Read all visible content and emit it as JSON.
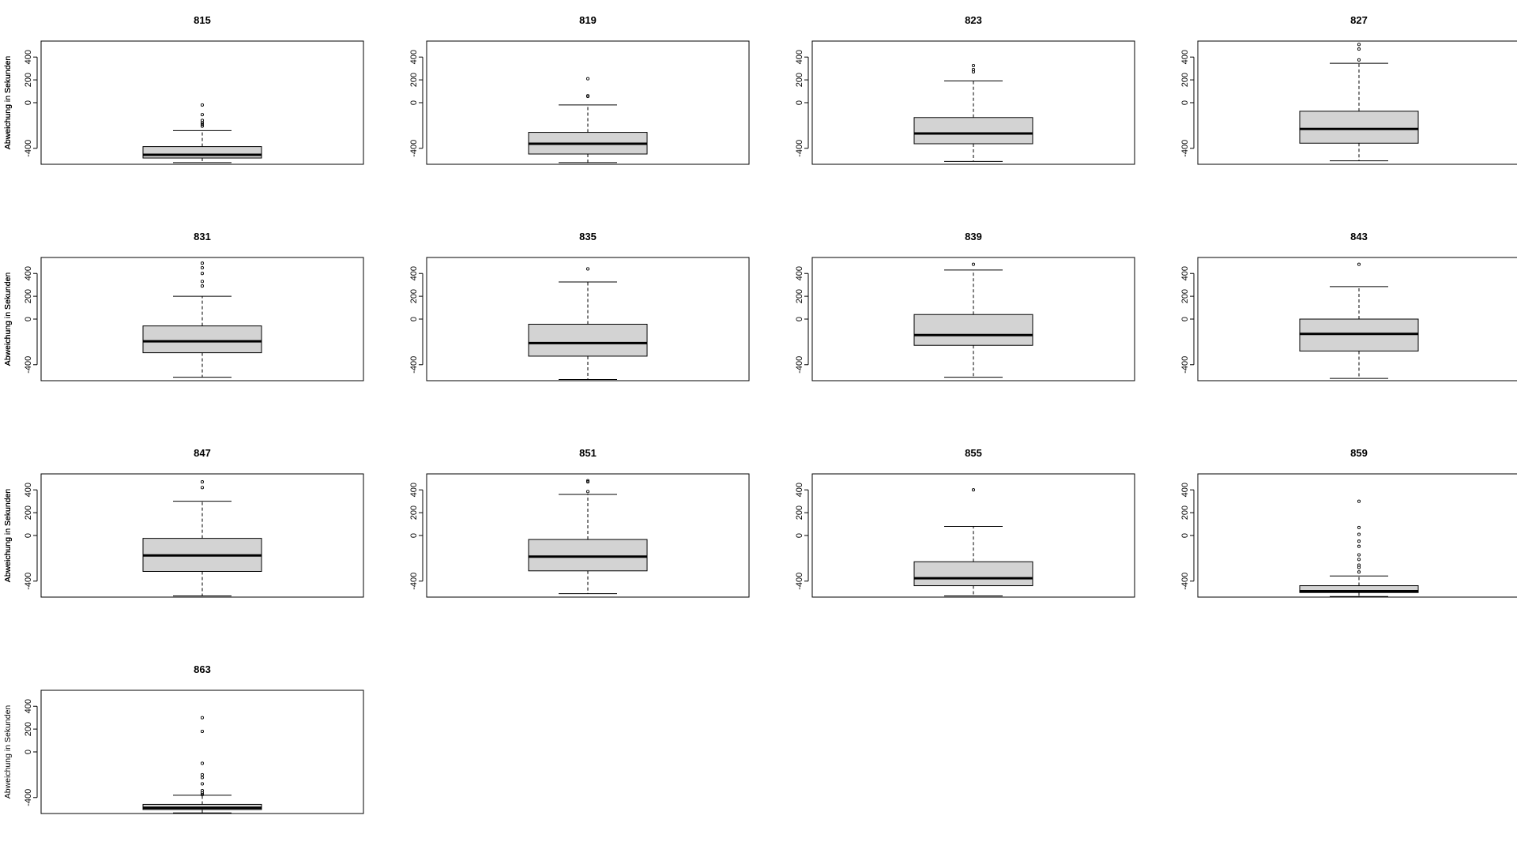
{
  "chart_data": [
    {
      "type": "box",
      "title": "815",
      "ylabel": "Abweichung in Sekunden",
      "yticks": [
        "-400",
        "0",
        "200",
        "400"
      ],
      "ylim": [
        -540,
        540
      ],
      "stats": {
        "min": -525,
        "q1": -485,
        "median": -457,
        "q3": -385,
        "whisker_low": -525,
        "whisker_high": -245
      },
      "outliers": [
        -20,
        -105,
        -155,
        -175,
        -190,
        -205
      ]
    },
    {
      "type": "box",
      "title": "819",
      "ylabel": "Abweichung in Sekunden",
      "yticks": [
        "-400",
        "0",
        "200",
        "400"
      ],
      "ylim": [
        -540,
        540
      ],
      "stats": {
        "q1": -450,
        "median": -360,
        "q3": -260,
        "whisker_low": -525,
        "whisker_high": -20
      },
      "outliers": [
        60,
        55,
        210
      ]
    },
    {
      "type": "box",
      "title": "823",
      "ylabel": "Abweichung in Sekunden",
      "yticks": [
        "-400",
        "0",
        "200",
        "400"
      ],
      "ylim": [
        -540,
        540
      ],
      "stats": {
        "q1": -360,
        "median": -270,
        "q3": -130,
        "whisker_low": -515,
        "whisker_high": 190
      },
      "outliers": [
        270,
        290,
        325
      ]
    },
    {
      "type": "box",
      "title": "827",
      "ylabel": "Abweichung in Sekunden",
      "yticks": [
        "-400",
        "0",
        "200",
        "400"
      ],
      "ylim": [
        -540,
        540
      ],
      "stats": {
        "q1": -355,
        "median": -230,
        "q3": -75,
        "whisker_low": -510,
        "whisker_high": 345
      },
      "outliers": [
        375,
        470,
        510
      ]
    },
    {
      "type": "box",
      "title": "831",
      "ylabel": "Abweichung in Sekunden",
      "yticks": [
        "-400",
        "0",
        "200",
        "400"
      ],
      "ylim": [
        -540,
        540
      ],
      "stats": {
        "q1": -295,
        "median": -195,
        "q3": -60,
        "whisker_low": -510,
        "whisker_high": 200
      },
      "outliers": [
        290,
        330,
        400,
        450,
        490
      ]
    },
    {
      "type": "box",
      "title": "835",
      "ylabel": "Abweichung in Sekunden",
      "yticks": [
        "-400",
        "0",
        "200",
        "400"
      ],
      "ylim": [
        -540,
        540
      ],
      "stats": {
        "q1": -325,
        "median": -210,
        "q3": -45,
        "whisker_low": -530,
        "whisker_high": 325
      },
      "outliers": [
        440
      ]
    },
    {
      "type": "box",
      "title": "839",
      "ylabel": "Abweichung in Sekunden",
      "yticks": [
        "-400",
        "0",
        "200",
        "400"
      ],
      "ylim": [
        -540,
        540
      ],
      "stats": {
        "q1": -230,
        "median": -140,
        "q3": 40,
        "whisker_low": -510,
        "whisker_high": 430
      },
      "outliers": [
        480
      ]
    },
    {
      "type": "box",
      "title": "843",
      "ylabel": "Abweichung in Sekunden",
      "yticks": [
        "-400",
        "0",
        "200",
        "400"
      ],
      "ylim": [
        -540,
        540
      ],
      "stats": {
        "q1": -280,
        "median": -130,
        "q3": 0,
        "whisker_low": -520,
        "whisker_high": 285
      },
      "outliers": [
        480
      ]
    },
    {
      "type": "box",
      "title": "847",
      "ylabel": "Abweichung in Sekunden",
      "yticks": [
        "-400",
        "0",
        "200",
        "400"
      ],
      "ylim": [
        -540,
        540
      ],
      "stats": {
        "q1": -315,
        "median": -175,
        "q3": -25,
        "whisker_low": -530,
        "whisker_high": 300
      },
      "outliers": [
        420,
        470
      ]
    },
    {
      "type": "box",
      "title": "851",
      "ylabel": "Abweichung in Sekunden",
      "yticks": [
        "-400",
        "0",
        "200",
        "400"
      ],
      "ylim": [
        -540,
        540
      ],
      "stats": {
        "q1": -310,
        "median": -185,
        "q3": -35,
        "whisker_low": -510,
        "whisker_high": 360
      },
      "outliers": [
        385,
        470,
        480
      ]
    },
    {
      "type": "box",
      "title": "855",
      "ylabel": "Abweichung in Sekunden",
      "yticks": [
        "-400",
        "0",
        "200",
        "400"
      ],
      "ylim": [
        -540,
        540
      ],
      "stats": {
        "q1": -440,
        "median": -375,
        "q3": -230,
        "whisker_low": -530,
        "whisker_high": 80
      },
      "outliers": [
        400
      ]
    },
    {
      "type": "box",
      "title": "859",
      "ylabel": "Abweichung in Sekunden",
      "yticks": [
        "-400",
        "0",
        "200",
        "400"
      ],
      "ylim": [
        -540,
        540
      ],
      "stats": {
        "q1": -500,
        "median": -488,
        "q3": -440,
        "whisker_low": -535,
        "whisker_high": -355
      },
      "outliers": [
        -260,
        -280,
        -320,
        -95,
        -170,
        -210,
        -50,
        10,
        70,
        300
      ]
    },
    {
      "type": "box",
      "title": "863",
      "ylabel": "Abweichung in Sekunden",
      "yticks": [
        "-400",
        "0",
        "200",
        "400"
      ],
      "ylim": [
        -540,
        540
      ],
      "stats": {
        "q1": -505,
        "median": -490,
        "q3": -460,
        "whisker_low": -535,
        "whisker_high": -380
      },
      "outliers": [
        -340,
        -360,
        -375,
        -280,
        -225,
        -200,
        -100,
        180,
        300
      ]
    }
  ]
}
